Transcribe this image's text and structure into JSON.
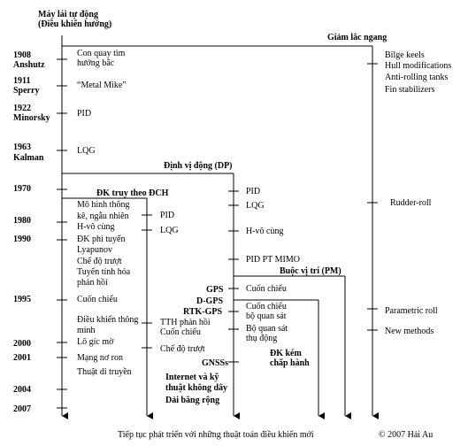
{
  "title": {
    "line1": "Máy lái tự động",
    "line2": "(Điều khiển hướng)"
  },
  "years": [
    {
      "year": "1908",
      "person": "Anshutz"
    },
    {
      "year": "1911",
      "person": "Sperry"
    },
    {
      "year": "1922",
      "person": "Minorsky"
    },
    {
      "year": "1963",
      "person": "Kalman"
    },
    {
      "year": "1970",
      "person": ""
    },
    {
      "year": "1980",
      "person": ""
    },
    {
      "year": "1990",
      "person": ""
    },
    {
      "year": "1995",
      "person": ""
    },
    {
      "year": "2000",
      "person": ""
    },
    {
      "year": "2001",
      "person": ""
    },
    {
      "year": "2004",
      "person": ""
    },
    {
      "year": "2007",
      "person": ""
    }
  ],
  "autopilot_items": [
    {
      "line1": "Con quay tìm",
      "line2": "hướng bắc"
    },
    {
      "line1": "“Metal Mike”",
      "line2": ""
    },
    {
      "line1": "PID",
      "line2": ""
    },
    {
      "line1": "LQG",
      "line2": ""
    }
  ],
  "roll_section": {
    "header": "Giảm lắc ngang",
    "items": [
      "Bilge keels",
      "Hull modifications",
      "Anti-rolling tanks",
      "Fin stabilizers"
    ],
    "later_items": [
      "Rudder-roll",
      "Parametric roll",
      "New methods"
    ]
  },
  "dp_section": {
    "header": "Định vị động (DP)",
    "items": [
      "PID",
      "LQG",
      "H-vô cùng",
      "PID PT MIMO"
    ],
    "pm_header": "Buộc vị trí (PM)",
    "pm_item": "Cuốn chiếu",
    "tracking": {
      "line1": "Cuốn chiếu",
      "line2": "bộ quan sát",
      "line3": "Bộ quan sát",
      "line4": "thụ động"
    },
    "limited_actuation": {
      "line1": "ĐK kém",
      "line2": "chấp hành"
    }
  },
  "path_section": {
    "header": "ĐK truy theo ĐCH",
    "pid": "PID",
    "lqg": "LQG",
    "tth": {
      "line1": "TTH phản hồi",
      "line2": "Cuốn chiếu"
    },
    "sliding": "Chế độ trượt"
  },
  "left_branch": {
    "model": {
      "line1": "Mô hình thông",
      "line2": "kê, ngẫu nhiên"
    },
    "hinf": "H-vô cùng",
    "nonlinear": {
      "line1": "ĐK phi tuyến",
      "line2": "Lyapunov",
      "line3": "Chế độ trượt",
      "line4": "Tuyến tính hóa",
      "line5": "phản hồi"
    },
    "backstepping": "Cuốn chiếu",
    "intelligent": {
      "line1": "Điều khiển thông",
      "line2": "minh"
    },
    "fuzzy": "Lô gíc mờ",
    "neural": "Mạng nơ ron",
    "genetic": "Thuật di truyền"
  },
  "navigation": {
    "gps": "GPS",
    "dgps": "D-GPS",
    "rtkgps": "RTK-GPS",
    "gnss": "GNSSs",
    "internet1": "Internet và kỹ",
    "internet2": "thuật không dây",
    "broadband": "Dải băng rộng"
  },
  "footer": {
    "caption": "Tiếp tục phát triển với những thuật toán điều khiển mới",
    "copyright": "© 2007 Hải Au"
  }
}
